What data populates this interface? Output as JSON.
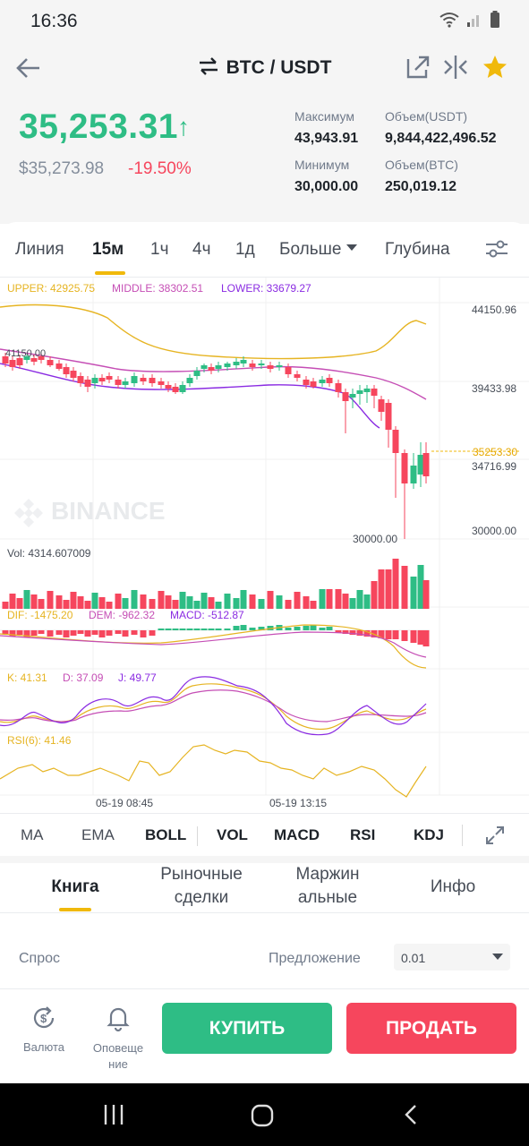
{
  "status": {
    "time": "16:36"
  },
  "header": {
    "pair": "BTC / USDT",
    "price": "35,253.31",
    "price_usd": "$35,273.98",
    "change": "-19.50%",
    "stats": {
      "high_label": "Максимум",
      "high_value": "43,943.91",
      "low_label": "Минимум",
      "low_value": "30,000.00",
      "vol_usdt_label": "Объем(USDT)",
      "vol_usdt_value": "9,844,422,496.52",
      "vol_btc_label": "Объем(BTC)",
      "vol_btc_value": "250,019.12"
    }
  },
  "timeframes": {
    "line": "Линия",
    "m15": "15м",
    "h1": "1ч",
    "h4": "4ч",
    "d1": "1д",
    "more": "Больше",
    "depth": "Глубина"
  },
  "chart": {
    "boll_upper": "UPPER: 42925.75",
    "boll_middle": "MIDDLE: 38302.51",
    "boll_lower": "LOWER: 33679.27",
    "axis_1": "44150.96",
    "axis_2": "39433.98",
    "axis_3": "34716.99",
    "axis_4": "30000.00",
    "last_price_tag": "35253.30",
    "high_marker": "41150.00",
    "low_marker": "30000.00",
    "watermark": "BINANCE",
    "vol_label": "Vol: 4314.607009",
    "macd_dif": "DIF: -1475.20",
    "macd_dem": "DEM: -962.32",
    "macd_macd": "MACD: -512.87",
    "kdj_k": "K: 41.31",
    "kdj_d": "D: 37.09",
    "kdj_j": "J: 49.77",
    "rsi": "RSI(6): 41.46",
    "time_1": "05-19 08:45",
    "time_2": "05-19 13:15",
    "colors": {
      "up": "#2ebd85",
      "down": "#f6465d",
      "upper": "#e6b422",
      "middle": "#c54eb5",
      "lower": "#8a2be2"
    }
  },
  "indicators": {
    "ma": "MA",
    "ema": "EMA",
    "boll": "BOLL",
    "vol": "VOL",
    "macd": "MACD",
    "rsi": "RSI",
    "kdj": "KDJ"
  },
  "book_tabs": {
    "book": "Книга",
    "trades_1": "Рыночные",
    "trades_2": "сделки",
    "margin_1": "Маржин",
    "margin_2": "альные",
    "info": "Инфо"
  },
  "book": {
    "bid": "Спрос",
    "ask": "Предложение",
    "precision": "0.01"
  },
  "bottom": {
    "currency": "Валюта",
    "alerts_1": "Оповеще",
    "alerts_2": "ние",
    "buy": "КУПИТЬ",
    "sell": "ПРОДАТЬ"
  }
}
